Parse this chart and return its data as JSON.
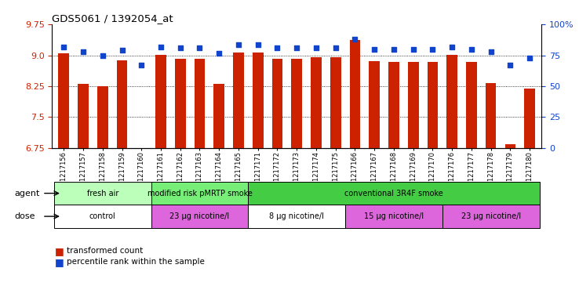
{
  "title": "GDS5061 / 1392054_at",
  "samples": [
    "GSM1217156",
    "GSM1217157",
    "GSM1217158",
    "GSM1217159",
    "GSM1217160",
    "GSM1217161",
    "GSM1217162",
    "GSM1217163",
    "GSM1217164",
    "GSM1217165",
    "GSM1217171",
    "GSM1217172",
    "GSM1217173",
    "GSM1217174",
    "GSM1217175",
    "GSM1217166",
    "GSM1217167",
    "GSM1217168",
    "GSM1217169",
    "GSM1217170",
    "GSM1217176",
    "GSM1217177",
    "GSM1217178",
    "GSM1217179",
    "GSM1217180"
  ],
  "bar_values": [
    9.05,
    8.31,
    8.25,
    8.88,
    6.7,
    9.02,
    8.92,
    8.92,
    8.31,
    9.08,
    9.08,
    8.91,
    8.91,
    8.95,
    8.95,
    9.38,
    8.87,
    8.85,
    8.85,
    8.85,
    9.02,
    8.85,
    8.33,
    6.83,
    8.2
  ],
  "percentile_values": [
    82,
    78,
    75,
    79,
    67,
    82,
    81,
    81,
    77,
    84,
    84,
    81,
    81,
    81,
    81,
    88,
    80,
    80,
    80,
    80,
    82,
    80,
    78,
    67,
    73
  ],
  "ylim_left": [
    6.75,
    9.75
  ],
  "ylim_right": [
    0,
    100
  ],
  "yticks_left": [
    6.75,
    7.5,
    8.25,
    9.0,
    9.75
  ],
  "yticks_right": [
    0,
    25,
    50,
    75,
    100
  ],
  "ytick_labels_left": [
    "6.75",
    "7.5",
    "8.25",
    "9.0",
    "9.75"
  ],
  "ytick_labels_right": [
    "0",
    "25",
    "50",
    "75",
    "100%"
  ],
  "bar_color": "#cc2200",
  "dot_color": "#1144cc",
  "agent_groups": [
    {
      "label": "fresh air",
      "start": 0,
      "end": 5,
      "color": "#bbffbb"
    },
    {
      "label": "modified risk pMRTP smoke",
      "start": 5,
      "end": 10,
      "color": "#77ee77"
    },
    {
      "label": "conventional 3R4F smoke",
      "start": 10,
      "end": 25,
      "color": "#44cc44"
    }
  ],
  "dose_groups": [
    {
      "label": "control",
      "start": 0,
      "end": 5,
      "color": "#ffffff"
    },
    {
      "label": "23 μg nicotine/l",
      "start": 5,
      "end": 10,
      "color": "#dd66dd"
    },
    {
      "label": "8 μg nicotine/l",
      "start": 10,
      "end": 15,
      "color": "#ffffff"
    },
    {
      "label": "15 μg nicotine/l",
      "start": 15,
      "end": 20,
      "color": "#dd66dd"
    },
    {
      "label": "23 μg nicotine/l",
      "start": 20,
      "end": 25,
      "color": "#dd66dd"
    }
  ],
  "legend_bar_label": "transformed count",
  "legend_dot_label": "percentile rank within the sample",
  "agent_label": "agent",
  "dose_label": "dose"
}
